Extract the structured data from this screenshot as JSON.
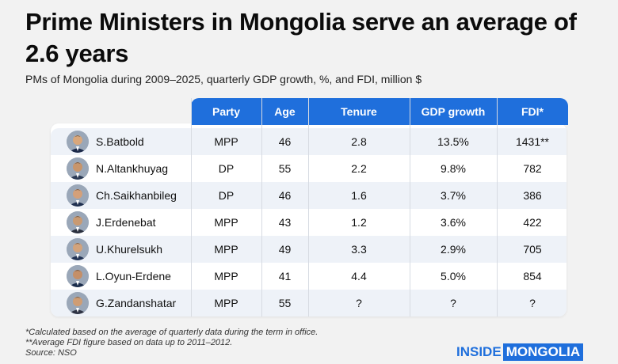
{
  "title": "Prime Ministers in Mongolia serve an average of 2.6 years",
  "subtitle": "PMs of Mongolia during 2009–2025, quarterly GDP growth, %, and FDI, million $",
  "chart_data": {
    "type": "table",
    "columns": [
      "Party",
      "Age",
      "Tenure",
      "GDP growth",
      "FDI*"
    ],
    "rows": [
      {
        "name": "S.Batbold",
        "party": "MPP",
        "age": "46",
        "tenure": "2.8",
        "gdp": "13.5%",
        "fdi": "1431**"
      },
      {
        "name": "N.Altankhuyag",
        "party": "DP",
        "age": "55",
        "tenure": "2.2",
        "gdp": "9.8%",
        "fdi": "782"
      },
      {
        "name": "Ch.Saikhanbileg",
        "party": "DP",
        "age": "46",
        "tenure": "1.6",
        "gdp": "3.7%",
        "fdi": "386"
      },
      {
        "name": "J.Erdenebat",
        "party": "MPP",
        "age": "43",
        "tenure": "1.2",
        "gdp": "3.6%",
        "fdi": "422"
      },
      {
        "name": "U.Khurelsukh",
        "party": "MPP",
        "age": "49",
        "tenure": "3.3",
        "gdp": "2.9%",
        "fdi": "705"
      },
      {
        "name": "L.Oyun-Erdene",
        "party": "MPP",
        "age": "41",
        "tenure": "4.4",
        "gdp": "5.0%",
        "fdi": "854"
      },
      {
        "name": "G.Zandanshatar",
        "party": "MPP",
        "age": "55",
        "tenure": "?",
        "gdp": "?",
        "fdi": "?"
      }
    ]
  },
  "footnotes": {
    "note1": "*Calculated based on the average of quarterly data during the term in office.",
    "note2": "**Average FDI figure based on data up to 2011–2012.",
    "source": "Source: NSO"
  },
  "logo": {
    "part1": "INSIDE",
    "part2": "MONGOLIA"
  },
  "colors": {
    "accent": "#1f6fdc",
    "header_text": "#ffffff",
    "row_alt": "#eef2f8"
  }
}
